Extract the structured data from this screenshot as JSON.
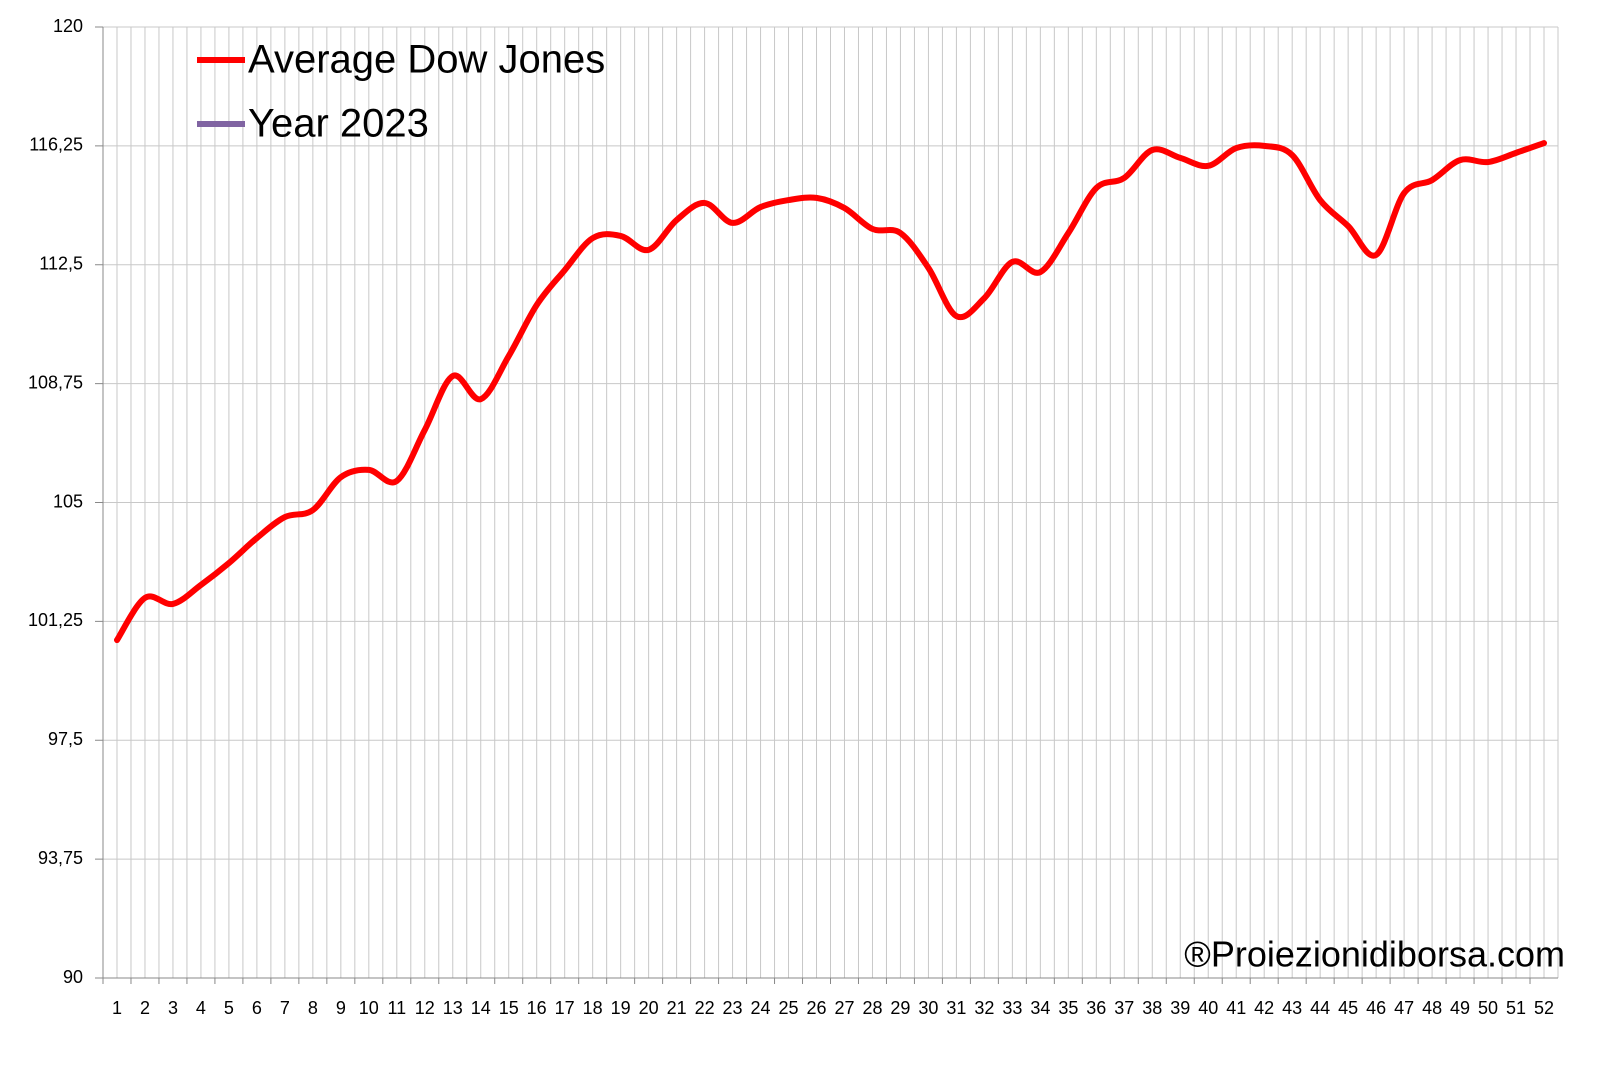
{
  "chart_data": {
    "type": "line",
    "categories": [
      "1",
      "2",
      "3",
      "4",
      "5",
      "6",
      "7",
      "8",
      "9",
      "10",
      "11",
      "12",
      "13",
      "14",
      "15",
      "16",
      "17",
      "18",
      "19",
      "20",
      "21",
      "22",
      "23",
      "24",
      "25",
      "26",
      "27",
      "28",
      "29",
      "30",
      "31",
      "32",
      "33",
      "34",
      "35",
      "36",
      "37",
      "38",
      "39",
      "40",
      "41",
      "42",
      "43",
      "44",
      "45",
      "46",
      "47",
      "48",
      "49",
      "50",
      "51",
      "52"
    ],
    "series": [
      {
        "name": "Average Dow Jones",
        "color": "#ff0000",
        "values": [
          100.66,
          101.99,
          101.8,
          102.4,
          103.09,
          103.88,
          104.54,
          104.76,
          105.8,
          106.03,
          105.68,
          107.29,
          108.99,
          108.26,
          109.62,
          111.23,
          112.33,
          113.34,
          113.41,
          112.97,
          113.91,
          114.45,
          113.82,
          114.32,
          114.54,
          114.61,
          114.29,
          113.63,
          113.5,
          112.4,
          110.88,
          111.45,
          112.59,
          112.27,
          113.5,
          114.92,
          115.24,
          116.12,
          115.87,
          115.62,
          116.18,
          116.25,
          115.96,
          114.54,
          113.72,
          112.81,
          114.76,
          115.17,
          115.8,
          115.74,
          116.03,
          116.34
        ]
      },
      {
        "name": "Year 2023",
        "color": "#8064a2",
        "values": [
          null,
          null,
          null,
          null,
          null,
          null,
          null,
          null,
          null,
          null,
          null,
          null,
          null,
          null,
          null,
          null,
          null,
          null,
          null,
          null,
          null,
          null,
          null,
          null,
          null,
          null,
          null,
          null,
          null,
          null,
          null,
          null,
          null,
          null,
          null,
          null,
          null,
          null,
          null,
          null,
          null,
          null,
          null,
          null,
          null,
          null,
          null,
          null,
          null,
          null,
          null,
          null
        ]
      }
    ],
    "ylim": [
      90,
      120
    ],
    "yticks": [
      90,
      {
        "value": 93.75,
        "label": "93,75"
      },
      {
        "value": 97.5,
        "label": "97,5"
      },
      {
        "value": 101.25,
        "label": "101,25"
      },
      105,
      {
        "value": 108.75,
        "label": "108,75"
      },
      {
        "value": 112.5,
        "label": "112,5"
      },
      {
        "value": 116.25,
        "label": "116,25"
      },
      120
    ],
    "grid": true,
    "legend": "upper-left",
    "annotation": "®Proiezionidiborsa.com"
  }
}
